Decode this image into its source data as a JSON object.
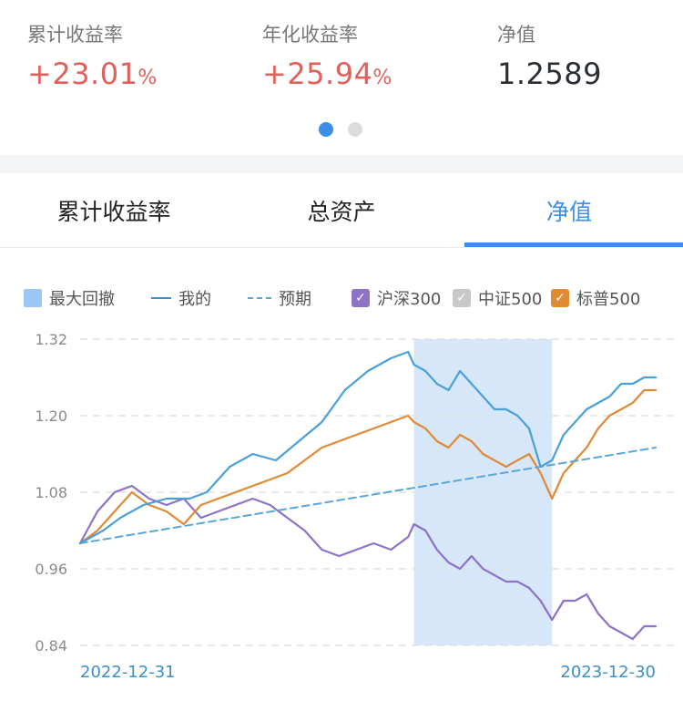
{
  "stats": [
    {
      "label": "累计收益率",
      "value": "+23.01",
      "unit": "%"
    },
    {
      "label": "年化收益率",
      "value": "+25.94",
      "unit": "%"
    },
    {
      "label": "净值",
      "value": "1.2589",
      "unit": ""
    }
  ],
  "tabs": [
    {
      "label": "累计收益率"
    },
    {
      "label": "总资产"
    },
    {
      "label": "净值"
    }
  ],
  "legend": {
    "drawdown": "最大回撤",
    "mine": "我的",
    "expected": "预期",
    "hs300": "沪深300",
    "zz500": "中证500",
    "sp500": "标普500",
    "check": "✓"
  },
  "colors": {
    "accent": "#3b8fe6",
    "positive": "#e0605a",
    "mine": "#4aa0d8",
    "expected": "#5aa6d6",
    "hs300": "#8e72c8",
    "zz500": "#c8c8c8",
    "sp500": "#e08a35",
    "drawdown": "#cfe3f9"
  },
  "chart_data": {
    "type": "line",
    "x_start": "2022-12-31",
    "x_end": "2023-12-30",
    "ylim": [
      0.84,
      1.32
    ],
    "yticks": [
      "1.32",
      "1.20",
      "1.08",
      "0.96",
      "0.84"
    ],
    "max_drawdown": {
      "start": 0.58,
      "end": 0.82
    },
    "series": [
      {
        "name": "我的",
        "key": "mine",
        "style": "solid",
        "x": [
          0.0,
          0.04,
          0.07,
          0.11,
          0.15,
          0.19,
          0.22,
          0.26,
          0.3,
          0.34,
          0.38,
          0.42,
          0.46,
          0.5,
          0.54,
          0.57,
          0.58,
          0.6,
          0.62,
          0.64,
          0.66,
          0.68,
          0.7,
          0.72,
          0.74,
          0.76,
          0.78,
          0.8,
          0.82,
          0.84,
          0.86,
          0.88,
          0.9,
          0.92,
          0.94,
          0.96,
          0.98,
          1.0
        ],
        "y": [
          1.0,
          1.02,
          1.04,
          1.06,
          1.07,
          1.07,
          1.08,
          1.12,
          1.14,
          1.13,
          1.16,
          1.19,
          1.24,
          1.27,
          1.29,
          1.3,
          1.28,
          1.27,
          1.25,
          1.24,
          1.27,
          1.25,
          1.23,
          1.21,
          1.21,
          1.2,
          1.18,
          1.12,
          1.13,
          1.17,
          1.19,
          1.21,
          1.22,
          1.23,
          1.25,
          1.25,
          1.26,
          1.26
        ]
      },
      {
        "name": "预期",
        "key": "expected",
        "style": "dashed",
        "x": [
          0.0,
          1.0
        ],
        "y": [
          1.0,
          1.15
        ]
      },
      {
        "name": "沪深300",
        "key": "hs300",
        "style": "solid",
        "x": [
          0.0,
          0.03,
          0.06,
          0.09,
          0.12,
          0.15,
          0.18,
          0.21,
          0.24,
          0.27,
          0.3,
          0.33,
          0.36,
          0.39,
          0.42,
          0.45,
          0.48,
          0.51,
          0.54,
          0.57,
          0.58,
          0.6,
          0.62,
          0.64,
          0.66,
          0.68,
          0.7,
          0.72,
          0.74,
          0.76,
          0.78,
          0.8,
          0.82,
          0.84,
          0.86,
          0.88,
          0.9,
          0.92,
          0.94,
          0.96,
          0.98,
          1.0
        ],
        "y": [
          1.0,
          1.05,
          1.08,
          1.09,
          1.07,
          1.06,
          1.07,
          1.04,
          1.05,
          1.06,
          1.07,
          1.06,
          1.04,
          1.02,
          0.99,
          0.98,
          0.99,
          1.0,
          0.99,
          1.01,
          1.03,
          1.02,
          0.99,
          0.97,
          0.96,
          0.98,
          0.96,
          0.95,
          0.94,
          0.94,
          0.93,
          0.91,
          0.88,
          0.91,
          0.91,
          0.92,
          0.89,
          0.87,
          0.86,
          0.85,
          0.87,
          0.87
        ]
      },
      {
        "name": "标普500",
        "key": "sp500",
        "style": "solid",
        "x": [
          0.0,
          0.03,
          0.06,
          0.09,
          0.12,
          0.15,
          0.18,
          0.21,
          0.24,
          0.27,
          0.3,
          0.33,
          0.36,
          0.39,
          0.42,
          0.45,
          0.48,
          0.51,
          0.54,
          0.57,
          0.58,
          0.6,
          0.62,
          0.64,
          0.66,
          0.68,
          0.7,
          0.72,
          0.74,
          0.76,
          0.78,
          0.8,
          0.82,
          0.84,
          0.86,
          0.88,
          0.9,
          0.92,
          0.94,
          0.96,
          0.98,
          1.0
        ],
        "y": [
          1.0,
          1.02,
          1.05,
          1.08,
          1.06,
          1.05,
          1.03,
          1.06,
          1.07,
          1.08,
          1.09,
          1.1,
          1.11,
          1.13,
          1.15,
          1.16,
          1.17,
          1.18,
          1.19,
          1.2,
          1.19,
          1.18,
          1.16,
          1.15,
          1.17,
          1.16,
          1.14,
          1.13,
          1.12,
          1.13,
          1.14,
          1.11,
          1.07,
          1.11,
          1.13,
          1.15,
          1.18,
          1.2,
          1.21,
          1.22,
          1.24,
          1.24
        ]
      }
    ]
  }
}
